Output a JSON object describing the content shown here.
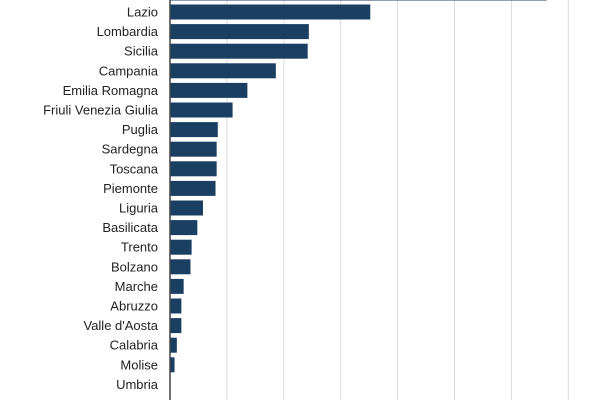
{
  "chart_data": {
    "type": "bar",
    "orientation": "horizontal",
    "categories": [
      "",
      "Lazio",
      "Lombardia",
      "Sicilia",
      "Campania",
      "Emilia Romagna",
      "Friuli Venezia Giulia",
      "Puglia",
      "Sardegna",
      "Toscana",
      "Piemonte",
      "Liguria",
      "Basilicata",
      "Trento",
      "Bolzano",
      "Marche",
      "Abruzzo",
      "Valle d'Aosta",
      "Calabria",
      "Molise",
      "Umbria"
    ],
    "values": [
      331,
      176,
      122,
      121,
      93,
      68,
      55,
      42,
      41,
      41,
      40,
      29,
      24,
      19,
      18,
      12,
      10,
      10,
      6,
      4,
      0
    ],
    "xlim": [
      0,
      350
    ],
    "grid": true,
    "bar_color": "#1b3f63",
    "grid_color": "#dcdcdc",
    "axis_color": "#444444"
  }
}
